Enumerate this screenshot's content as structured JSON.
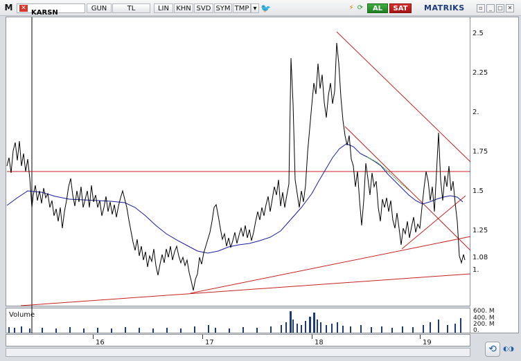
{
  "toolbar": {
    "menu_letter": "M",
    "symbol": "KARSN",
    "period": "GUN",
    "currency": "TL",
    "scale": "LIN",
    "buttons": [
      "KHN",
      "SVD",
      "SYM",
      "TMP"
    ],
    "buy_label": "AL",
    "sell_label": "SAT",
    "brand": "MATRIKS"
  },
  "price_axis": {
    "ticks": [
      "2.5",
      "2.25",
      "2.",
      "1.75",
      "1.5",
      "1.25",
      "1.08",
      "1."
    ],
    "last_price": "1.08"
  },
  "volume_panel": {
    "label": "Volume",
    "ticks": [
      "600. M",
      "400. M",
      "200. M",
      "0."
    ]
  },
  "time_axis": {
    "ticks": [
      "16",
      "17",
      "18",
      "19"
    ]
  },
  "colors": {
    "price_line": "#000000",
    "moving_average": "#1a1a9e",
    "trend_lines": "#c62020",
    "volume_bars": "#1c3a78",
    "accent": "#1b3b7b"
  }
}
